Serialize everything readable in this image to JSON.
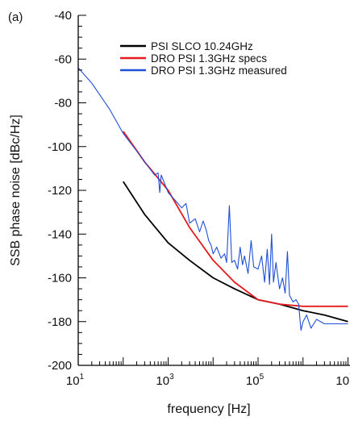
{
  "chart_data": {
    "type": "line",
    "panel_label": "(a)",
    "xlabel": "frequency [Hz]",
    "ylabel": "SSB phase noise [dBc/Hz]",
    "x_scale": "log",
    "xlim": [
      10,
      10000000
    ],
    "ylim": [
      -200,
      -40
    ],
    "x_ticks": [
      {
        "value": 10,
        "base": "10",
        "exp": "1"
      },
      {
        "value": 1000,
        "base": "10",
        "exp": "3"
      },
      {
        "value": 100000,
        "base": "10",
        "exp": "5"
      },
      {
        "value": 10000000,
        "base": "10",
        "exp": "7"
      }
    ],
    "y_ticks": [
      -40,
      -60,
      -80,
      -100,
      -120,
      -140,
      -160,
      -180,
      -200
    ],
    "grid": false,
    "legend_position": "top-right",
    "series": [
      {
        "name": "PSI SLCO 10.24GHz",
        "color": "#000000",
        "points": [
          [
            100,
            -116
          ],
          [
            300,
            -131
          ],
          [
            1000,
            -144
          ],
          [
            3000,
            -152
          ],
          [
            10000,
            -160
          ],
          [
            30000,
            -165
          ],
          [
            100000,
            -170
          ],
          [
            300000,
            -172
          ],
          [
            1000000,
            -175
          ],
          [
            3000000,
            -177
          ],
          [
            10000000,
            -180
          ]
        ]
      },
      {
        "name": "DRO PSI 1.3GHz specs",
        "color": "#e41a1c",
        "points": [
          [
            100,
            -93
          ],
          [
            300,
            -107
          ],
          [
            1000,
            -120
          ],
          [
            3000,
            -137
          ],
          [
            10000,
            -152
          ],
          [
            30000,
            -162
          ],
          [
            100000,
            -170
          ],
          [
            300000,
            -172
          ],
          [
            1000000,
            -173
          ],
          [
            10000000,
            -173
          ]
        ]
      },
      {
        "name": "DRO PSI 1.3GHz measured",
        "color": "#1f4fd6",
        "points": [
          [
            10,
            -64
          ],
          [
            20,
            -71
          ],
          [
            50,
            -83
          ],
          [
            100,
            -94
          ],
          [
            200,
            -102
          ],
          [
            300,
            -107
          ],
          [
            500,
            -113
          ],
          [
            600,
            -112
          ],
          [
            650,
            -121
          ],
          [
            700,
            -113
          ],
          [
            1000,
            -121
          ],
          [
            1500,
            -125
          ],
          [
            2000,
            -128
          ],
          [
            2500,
            -126
          ],
          [
            3000,
            -135
          ],
          [
            4000,
            -133
          ],
          [
            5000,
            -139
          ],
          [
            6000,
            -134
          ],
          [
            7000,
            -138
          ],
          [
            8000,
            -143
          ],
          [
            9000,
            -145
          ],
          [
            10000,
            -149
          ],
          [
            12000,
            -146
          ],
          [
            15000,
            -151
          ],
          [
            18000,
            -149
          ],
          [
            20000,
            -153
          ],
          [
            23000,
            -127
          ],
          [
            26000,
            -153
          ],
          [
            30000,
            -152
          ],
          [
            35000,
            -156
          ],
          [
            40000,
            -146
          ],
          [
            45000,
            -154
          ],
          [
            50000,
            -150
          ],
          [
            60000,
            -158
          ],
          [
            70000,
            -143
          ],
          [
            80000,
            -155
          ],
          [
            100000,
            -156
          ],
          [
            120000,
            -150
          ],
          [
            140000,
            -162
          ],
          [
            160000,
            -147
          ],
          [
            180000,
            -163
          ],
          [
            200000,
            -140
          ],
          [
            220000,
            -162
          ],
          [
            250000,
            -153
          ],
          [
            300000,
            -165
          ],
          [
            350000,
            -160
          ],
          [
            400000,
            -167
          ],
          [
            450000,
            -148
          ],
          [
            500000,
            -168
          ],
          [
            600000,
            -171
          ],
          [
            700000,
            -170
          ],
          [
            800000,
            -172
          ],
          [
            900000,
            -184
          ],
          [
            1000000,
            -180
          ],
          [
            1200000,
            -177
          ],
          [
            1500000,
            -183
          ],
          [
            2000000,
            -179
          ],
          [
            3000000,
            -181
          ],
          [
            5000000,
            -181
          ],
          [
            10000000,
            -181
          ]
        ]
      }
    ]
  }
}
